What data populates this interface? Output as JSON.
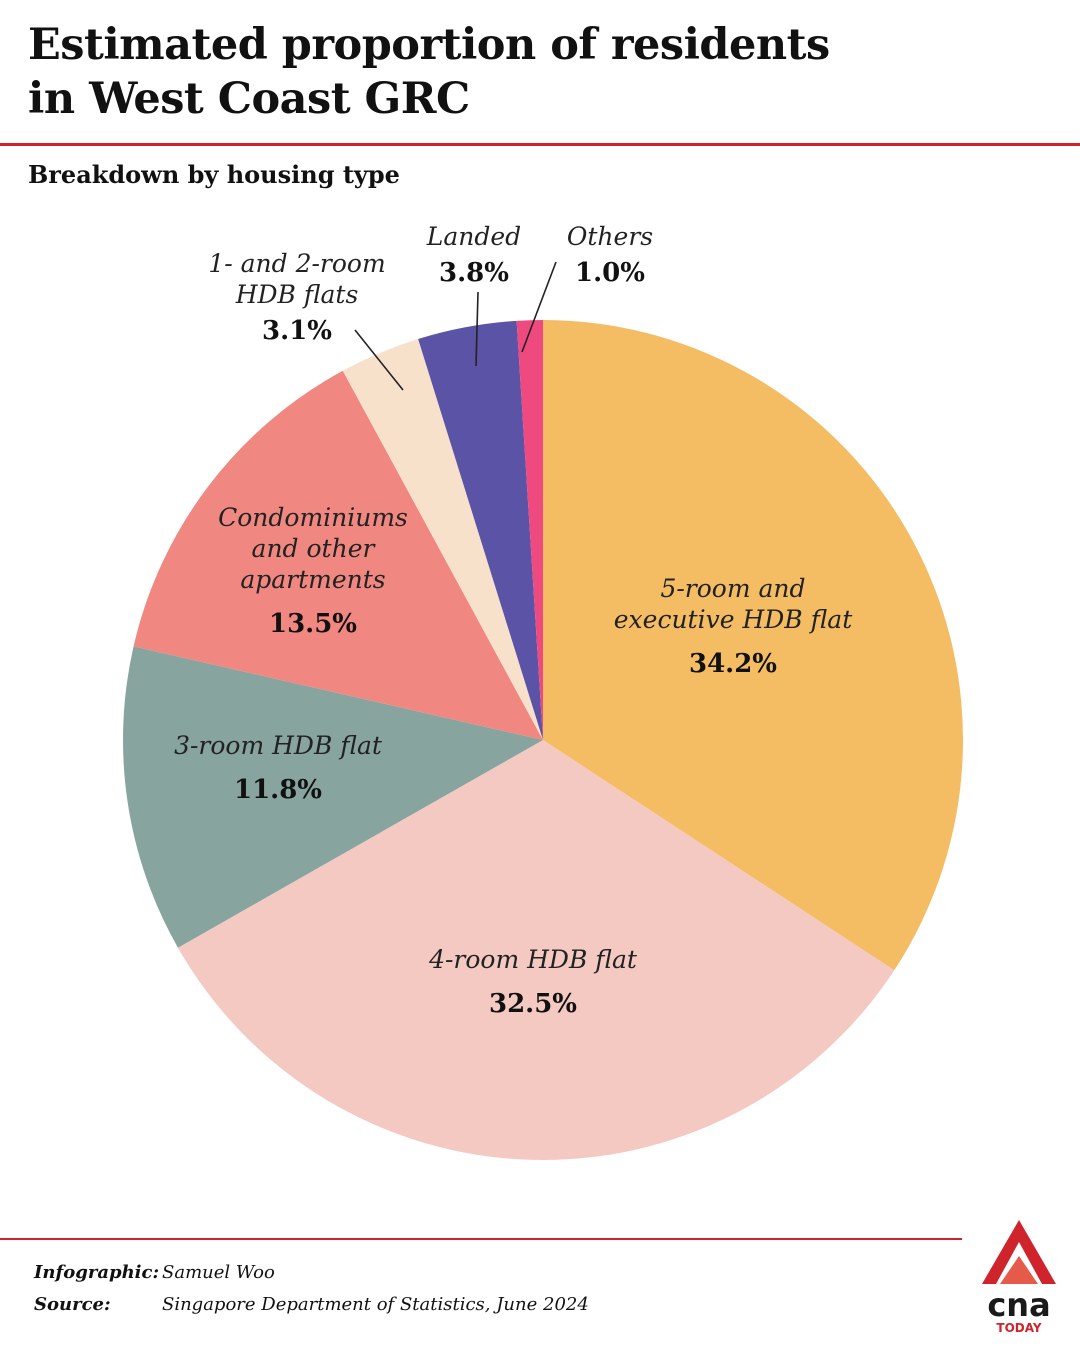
{
  "header": {
    "title_line1": "Estimated proportion of residents",
    "title_line2": "in West Coast GRC",
    "subtitle": "Breakdown by housing type"
  },
  "chart_data": {
    "type": "pie",
    "title": "Estimated proportion of residents in West Coast GRC",
    "subtitle": "Breakdown by housing type",
    "unit": "%",
    "slices": [
      {
        "name": "5-room and executive HDB flat",
        "label_lines": [
          "5-room and",
          "executive HDB flat"
        ],
        "value": 34.2,
        "value_label": "34.2%",
        "color": "#f4bc63"
      },
      {
        "name": "4-room HDB flat",
        "label_lines": [
          "4-room HDB flat"
        ],
        "value": 32.5,
        "value_label": "32.5%",
        "color": "#f4c9c2"
      },
      {
        "name": "3-room HDB flat",
        "label_lines": [
          "3-room HDB flat"
        ],
        "value": 11.8,
        "value_label": "11.8%",
        "color": "#87a59e"
      },
      {
        "name": "Condominiums and other apartments",
        "label_lines": [
          "Condominiums",
          "and other",
          "apartments"
        ],
        "value": 13.5,
        "value_label": "13.5%",
        "color": "#f08781"
      },
      {
        "name": "1- and 2-room HDB flats",
        "label_lines": [
          "1- and 2-room",
          "HDB flats"
        ],
        "value": 3.1,
        "value_label": "3.1%",
        "color": "#f8e1ca"
      },
      {
        "name": "Landed",
        "label_lines": [
          "Landed"
        ],
        "value": 3.8,
        "value_label": "3.8%",
        "color": "#5b53a6"
      },
      {
        "name": "Others",
        "label_lines": [
          "Others"
        ],
        "value": 1.0,
        "value_label": "1.0%",
        "color": "#ef4a80"
      }
    ]
  },
  "footer": {
    "infographic_label": "Infographic:",
    "infographic_value": "Samuel Woo",
    "source_label": "Source:",
    "source_value": "Singapore Department of Statistics, June 2024"
  },
  "brand": {
    "logo_text": "cna",
    "logo_sub": "TODAY",
    "accent_color": "#d0242c"
  }
}
